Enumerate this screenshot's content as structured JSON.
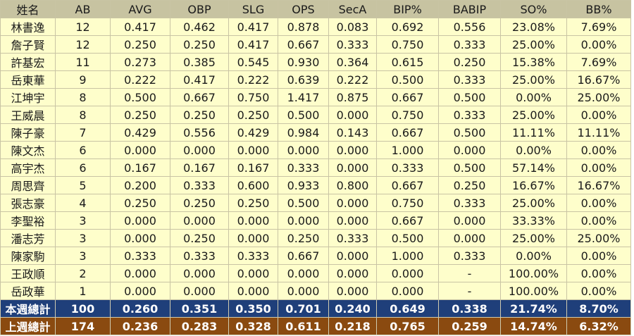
{
  "headers": [
    "姓名",
    "AB",
    "AVG",
    "OBP",
    "SLG",
    "OPS",
    "SecA",
    "BIP%",
    "BABIP",
    "SO%",
    "BB%"
  ],
  "rows": [
    [
      "林書逸",
      "12",
      "0.417",
      "0.462",
      "0.417",
      "0.878",
      "0.083",
      "0.692",
      "0.556",
      "23.08%",
      "7.69%"
    ],
    [
      "詹子賢",
      "12",
      "0.250",
      "0.250",
      "0.417",
      "0.667",
      "0.333",
      "0.750",
      "0.333",
      "25.00%",
      "0.00%"
    ],
    [
      "許基宏",
      "11",
      "0.273",
      "0.385",
      "0.545",
      "0.930",
      "0.364",
      "0.615",
      "0.250",
      "15.38%",
      "7.69%"
    ],
    [
      "岳東華",
      "9",
      "0.222",
      "0.417",
      "0.222",
      "0.639",
      "0.222",
      "0.500",
      "0.333",
      "25.00%",
      "16.67%"
    ],
    [
      "江坤宇",
      "8",
      "0.500",
      "0.667",
      "0.750",
      "1.417",
      "0.875",
      "0.667",
      "0.500",
      "0.00%",
      "25.00%"
    ],
    [
      "王威晨",
      "8",
      "0.250",
      "0.250",
      "0.250",
      "0.500",
      "0.000",
      "0.750",
      "0.333",
      "25.00%",
      "0.00%"
    ],
    [
      "陳子豪",
      "7",
      "0.429",
      "0.556",
      "0.429",
      "0.984",
      "0.143",
      "0.667",
      "0.500",
      "11.11%",
      "11.11%"
    ],
    [
      "陳文杰",
      "6",
      "0.000",
      "0.000",
      "0.000",
      "0.000",
      "0.000",
      "1.000",
      "0.000",
      "0.00%",
      "0.00%"
    ],
    [
      "高宇杰",
      "6",
      "0.167",
      "0.167",
      "0.167",
      "0.333",
      "0.000",
      "0.333",
      "0.500",
      "57.14%",
      "0.00%"
    ],
    [
      "周思齊",
      "5",
      "0.200",
      "0.333",
      "0.600",
      "0.933",
      "0.800",
      "0.667",
      "0.250",
      "16.67%",
      "16.67%"
    ],
    [
      "張志豪",
      "4",
      "0.250",
      "0.250",
      "0.250",
      "0.500",
      "0.000",
      "0.750",
      "0.333",
      "25.00%",
      "0.00%"
    ],
    [
      "李聖裕",
      "3",
      "0.000",
      "0.000",
      "0.000",
      "0.000",
      "0.000",
      "0.667",
      "0.000",
      "33.33%",
      "0.00%"
    ],
    [
      "潘志芳",
      "3",
      "0.000",
      "0.250",
      "0.000",
      "0.250",
      "0.333",
      "0.500",
      "0.000",
      "25.00%",
      "25.00%"
    ],
    [
      "陳家駒",
      "3",
      "0.333",
      "0.333",
      "0.333",
      "0.667",
      "0.000",
      "1.000",
      "0.333",
      "0.00%",
      "0.00%"
    ],
    [
      "王政順",
      "2",
      "0.000",
      "0.000",
      "0.000",
      "0.000",
      "0.000",
      "0.000",
      "-",
      "100.00%",
      "0.00%"
    ],
    [
      "岳政華",
      "1",
      "0.000",
      "0.000",
      "0.000",
      "0.000",
      "0.000",
      "0.000",
      "-",
      "100.00%",
      "0.00%"
    ]
  ],
  "totals": [
    {
      "key": "this_week",
      "cells": [
        "本週總計",
        "100",
        "0.260",
        "0.351",
        "0.350",
        "0.701",
        "0.240",
        "0.649",
        "0.338",
        "21.74%",
        "8.70%"
      ]
    },
    {
      "key": "last_week",
      "cells": [
        "上週總計",
        "174",
        "0.236",
        "0.283",
        "0.328",
        "0.611",
        "0.218",
        "0.765",
        "0.259",
        "14.74%",
        "6.32%"
      ]
    }
  ]
}
